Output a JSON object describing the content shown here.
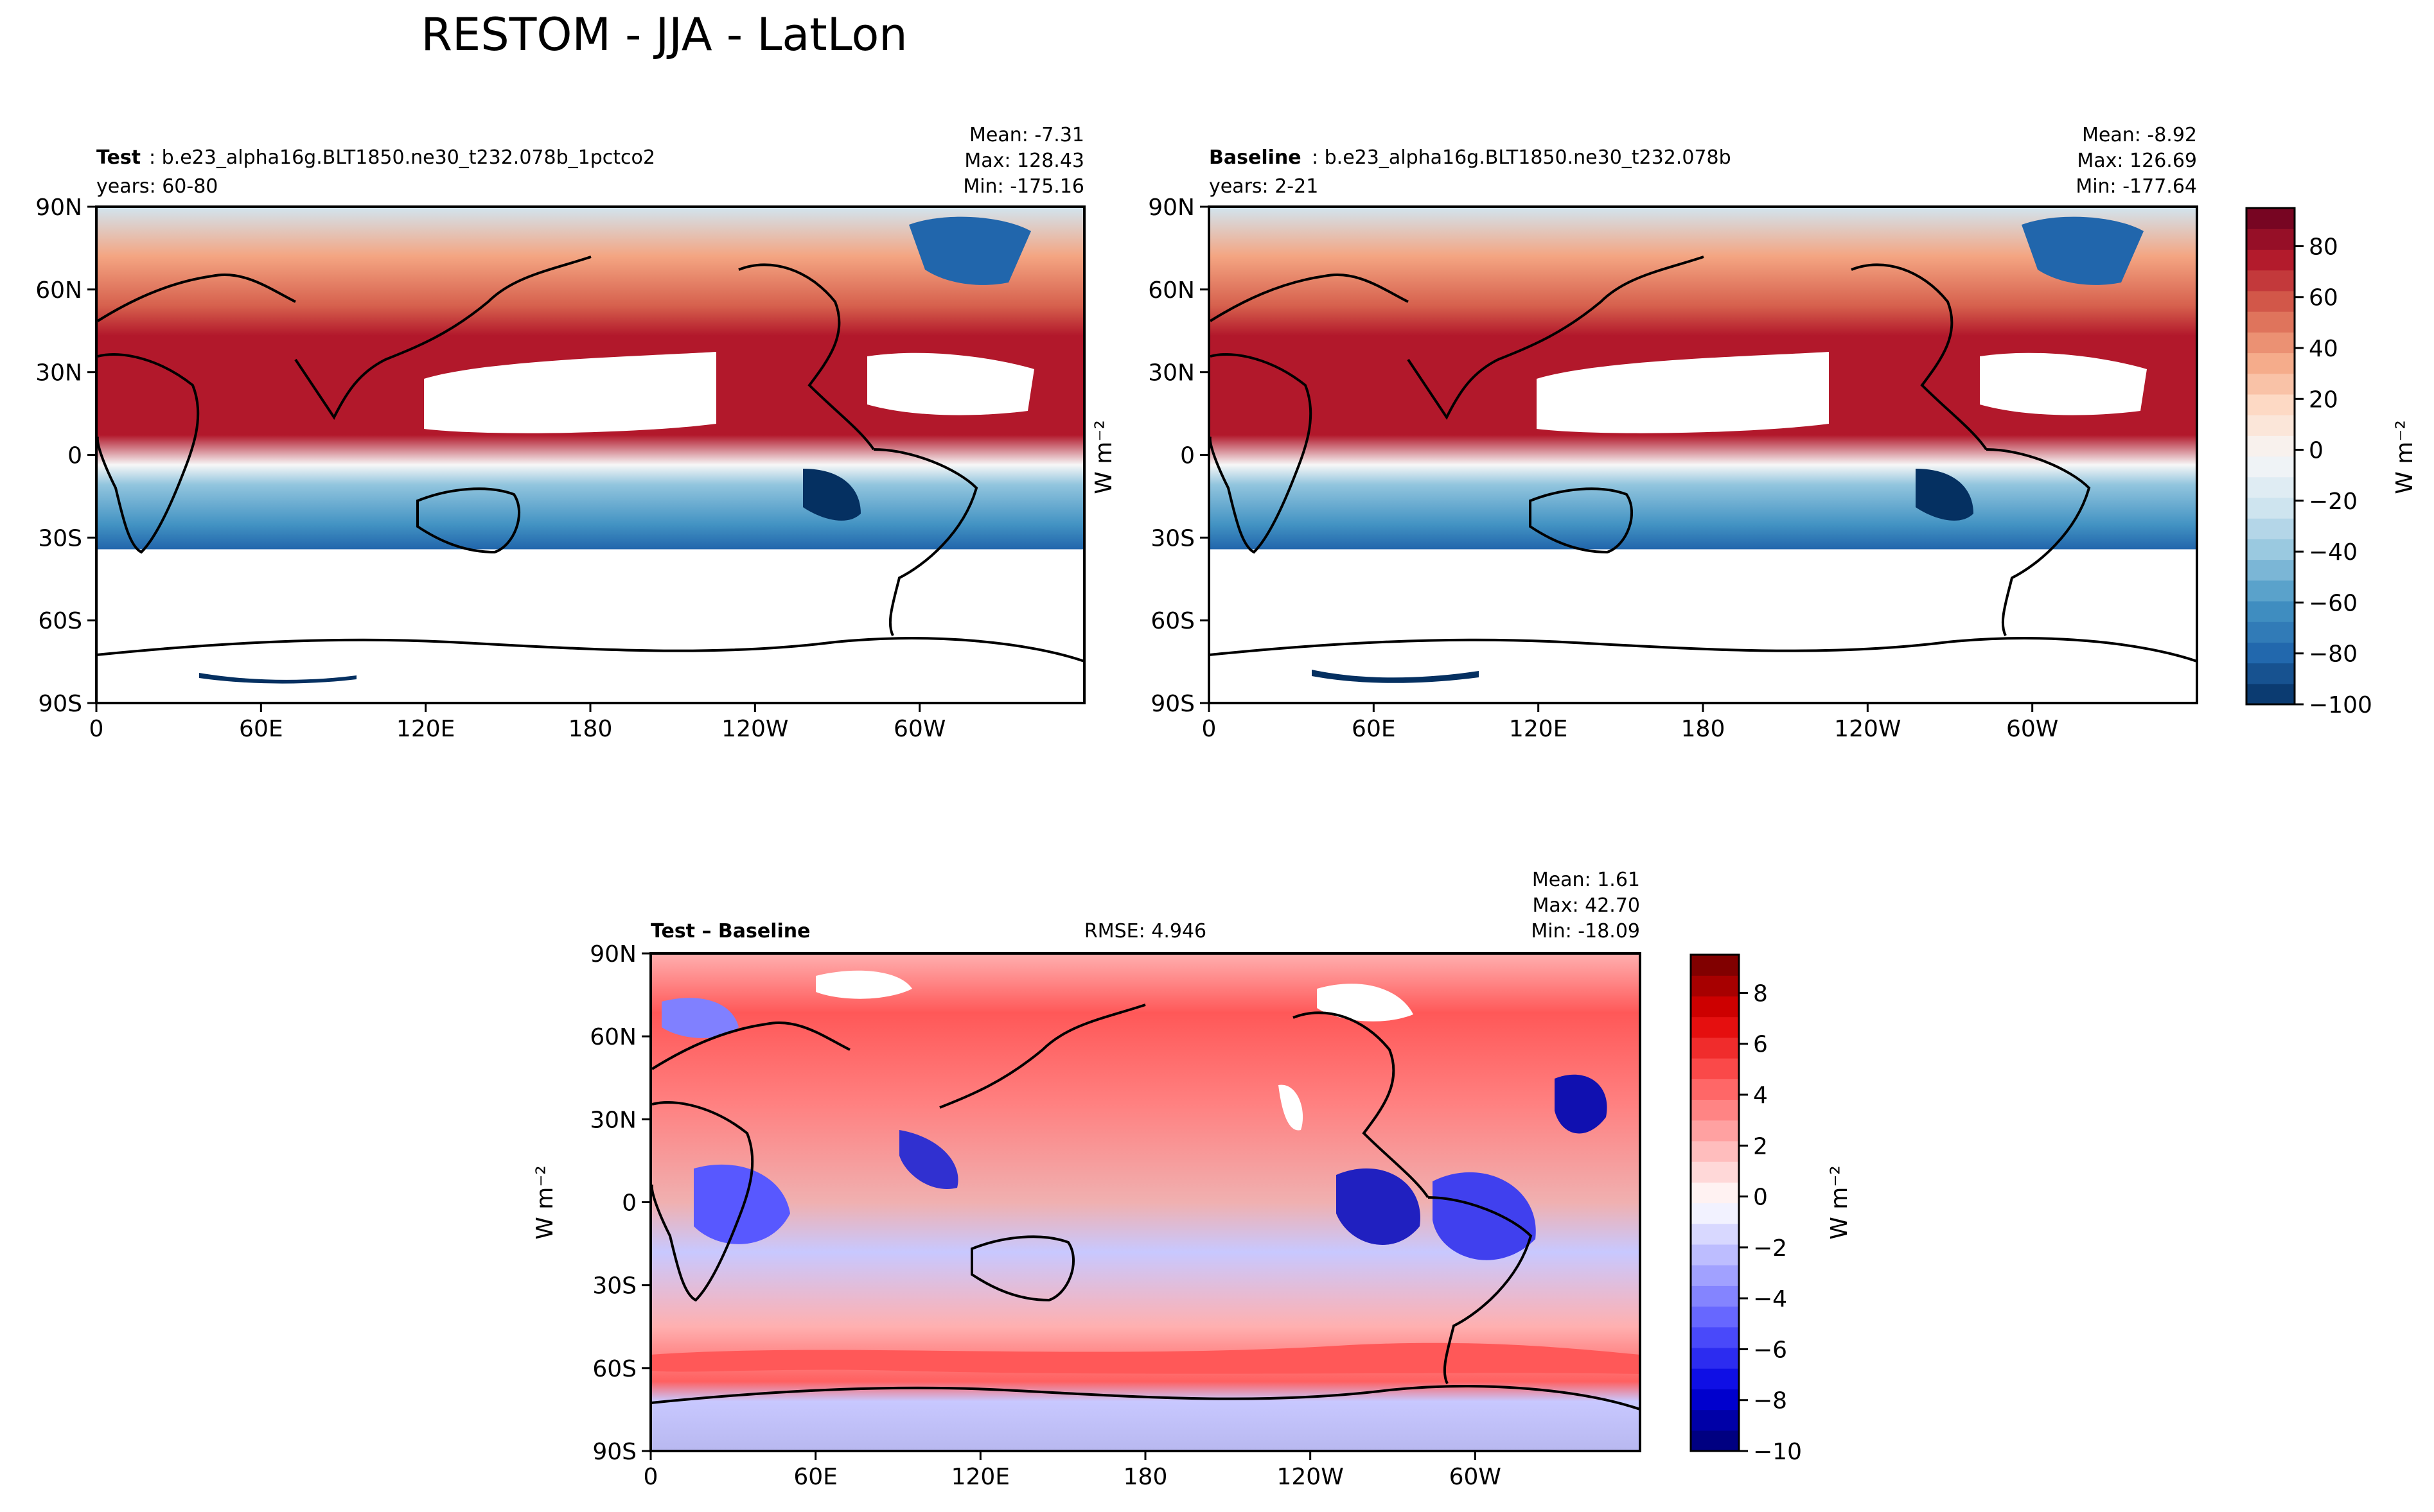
{
  "figure": {
    "title": "RESTOM - JJA - LatLon"
  },
  "chart_data": [
    {
      "type": "heatmap",
      "panel": "test",
      "label_bold": "Test",
      "label_rest": ": b.e23_alpha16g.BLT1850.ne30_t232.078b_1pctco2",
      "years": "years: 60-80",
      "stats": {
        "mean": "Mean: -7.31",
        "max": "Max: 128.43",
        "min": "Min: -175.16"
      },
      "ylabel": "W m⁻²",
      "x_ticks": [
        "0",
        "60E",
        "120E",
        "180",
        "120W",
        "60W"
      ],
      "y_ticks": [
        "90N",
        "60N",
        "30N",
        "0",
        "30S",
        "60S",
        "90S"
      ],
      "xlim": [
        0,
        360
      ],
      "ylim": [
        -90,
        90
      ]
    },
    {
      "type": "heatmap",
      "panel": "baseline",
      "label_bold": "Baseline",
      "label_rest": ": b.e23_alpha16g.BLT1850.ne30_t232.078b",
      "years": "years: 2-21",
      "stats": {
        "mean": "Mean: -8.92",
        "max": "Max: 126.69",
        "min": "Min: -177.64"
      },
      "x_ticks": [
        "0",
        "60E",
        "120E",
        "180",
        "120W",
        "60W"
      ],
      "y_ticks": [
        "90N",
        "60N",
        "30N",
        "0",
        "30S",
        "60S",
        "90S"
      ],
      "xlim": [
        0,
        360
      ],
      "ylim": [
        -90,
        90
      ]
    },
    {
      "type": "heatmap",
      "panel": "difference",
      "label": "Test – Baseline",
      "rmse": "RMSE: 4.946",
      "stats": {
        "mean": "Mean:  1.61",
        "max": "Max: 42.70",
        "min": "Min: -18.09"
      },
      "ylabel": "W m⁻²",
      "x_ticks": [
        "0",
        "60E",
        "120E",
        "180",
        "120W",
        "60W"
      ],
      "y_ticks": [
        "90N",
        "60N",
        "30N",
        "0",
        "30S",
        "60S",
        "90S"
      ],
      "xlim": [
        0,
        360
      ],
      "ylim": [
        -90,
        90
      ]
    }
  ],
  "colorbars": {
    "main": {
      "label": "W m⁻²",
      "ticks": [
        "80",
        "60",
        "40",
        "20",
        "0",
        "−20",
        "−40",
        "−60",
        "−80",
        "−100"
      ],
      "tick_values": [
        80,
        60,
        40,
        20,
        0,
        -20,
        -40,
        -60,
        -80,
        -100
      ],
      "range": [
        -100,
        95
      ],
      "colors": [
        "#053061",
        "#2166ac",
        "#4393c3",
        "#92c5de",
        "#d1e5f0",
        "#f7f7f7",
        "#fddbc7",
        "#f4a582",
        "#d6604d",
        "#b2182b",
        "#67001f"
      ]
    },
    "diff": {
      "label": "W m⁻²",
      "ticks": [
        "8",
        "6",
        "4",
        "2",
        "0",
        "−2",
        "−4",
        "−6",
        "−8",
        "−10"
      ],
      "tick_values": [
        8,
        6,
        4,
        2,
        0,
        -2,
        -4,
        -6,
        -8,
        -10
      ],
      "range": [
        -10,
        9.5
      ],
      "colors": [
        "#00006e",
        "#0000e0",
        "#5858ff",
        "#b0b0ff",
        "#ffffff",
        "#ffb0b0",
        "#ff5858",
        "#e00000",
        "#6e0000"
      ]
    }
  }
}
